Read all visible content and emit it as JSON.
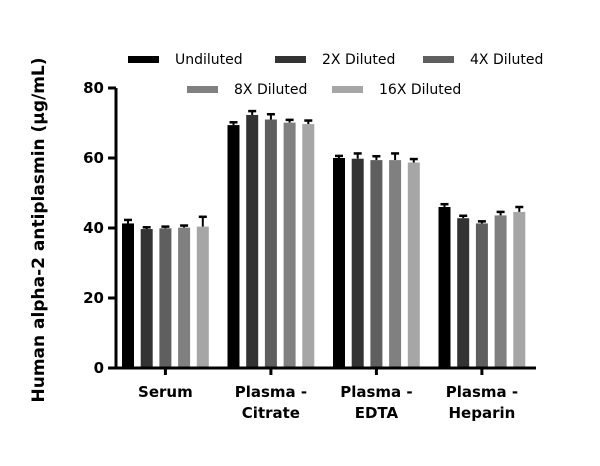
{
  "chart_data": {
    "type": "bar",
    "title": "",
    "xlabel": "",
    "ylabel": "Human alpha-2 antiplasmin (µg/mL)",
    "ylim": [
      0,
      80
    ],
    "yticks": [
      "0",
      "20",
      "40",
      "60",
      "80"
    ],
    "grid": false,
    "legend_position": "top",
    "categories": [
      [
        "Serum"
      ],
      [
        "Plasma -",
        "Citrate"
      ],
      [
        "Plasma -",
        "EDTA"
      ],
      [
        "Plasma -",
        "Heparin"
      ]
    ],
    "series": [
      {
        "name": "Undiluted",
        "color": "#000000",
        "values": [
          41.3,
          69.4,
          60.0,
          46.0
        ],
        "errors": [
          1.0,
          0.8,
          0.6,
          0.8
        ]
      },
      {
        "name": "2X Diluted",
        "color": "#333333",
        "values": [
          39.7,
          72.3,
          59.8,
          42.8
        ],
        "errors": [
          0.5,
          1.1,
          1.5,
          0.7
        ]
      },
      {
        "name": "4X Diluted",
        "color": "#5f5f5f",
        "values": [
          39.9,
          71.0,
          59.4,
          41.3
        ],
        "errors": [
          0.5,
          1.5,
          1.1,
          0.6
        ]
      },
      {
        "name": "8X Diluted",
        "color": "#808080",
        "values": [
          40.1,
          70.1,
          59.4,
          43.6
        ],
        "errors": [
          0.6,
          0.8,
          1.9,
          1.0
        ]
      },
      {
        "name": "16X Diluted",
        "color": "#a6a6a6",
        "values": [
          40.4,
          69.7,
          58.7,
          44.6
        ],
        "errors": [
          2.8,
          1.0,
          1.0,
          1.4
        ]
      }
    ]
  }
}
